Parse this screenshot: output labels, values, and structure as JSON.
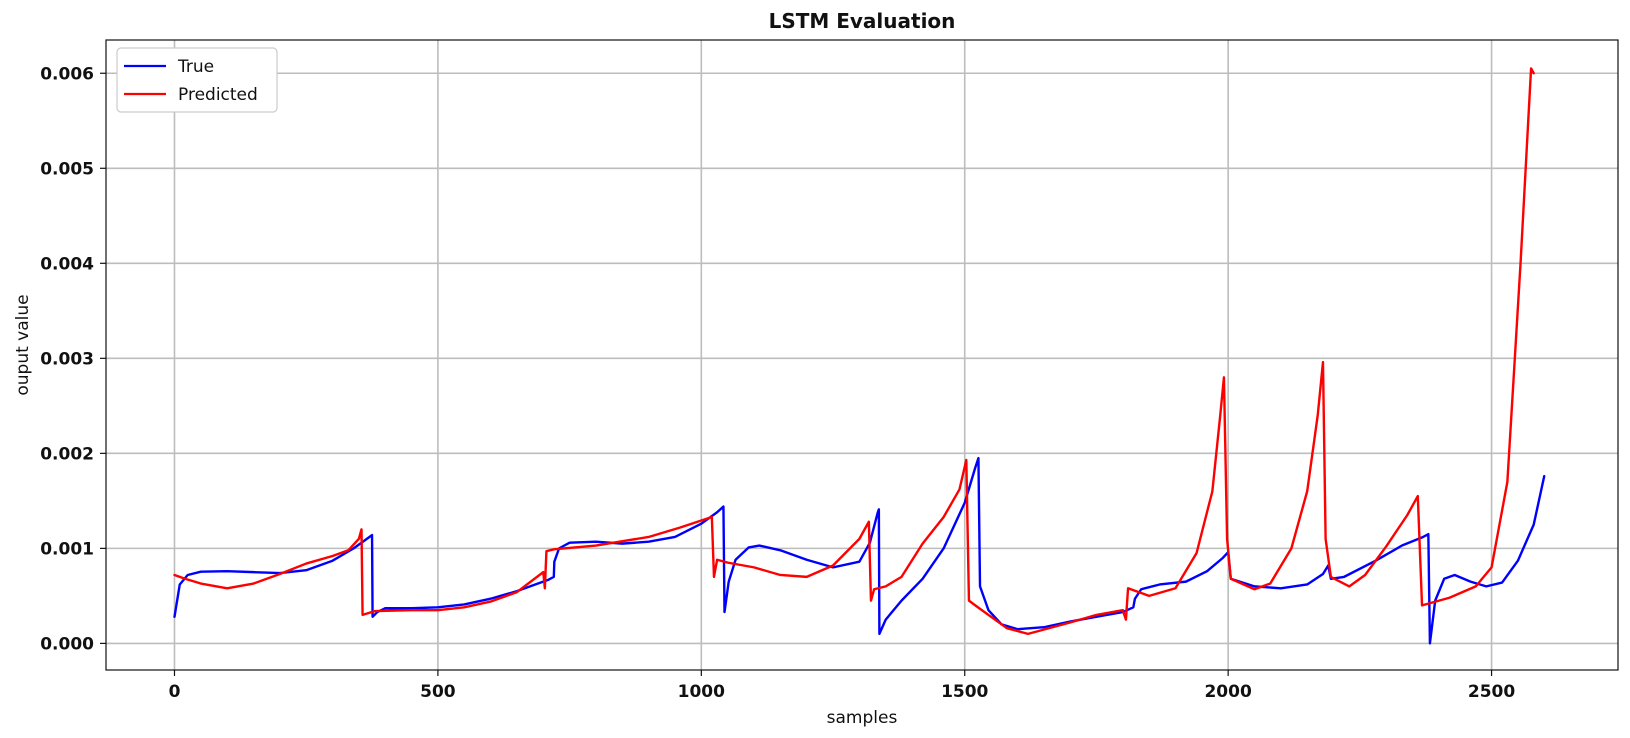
{
  "chart_data": {
    "type": "line",
    "title": "LSTM Evaluation",
    "xlabel": "samples",
    "ylabel": "ouput value",
    "xlim": [
      -130,
      2740
    ],
    "ylim": [
      -0.00028,
      0.00635
    ],
    "xticks": [
      0,
      500,
      1000,
      1500,
      2000,
      2500
    ],
    "xtick_labels": [
      "0",
      "500",
      "1000",
      "1500",
      "2000",
      "2500"
    ],
    "yticks": [
      0,
      0.001,
      0.002,
      0.003,
      0.004,
      0.005,
      0.006
    ],
    "ytick_labels": [
      "0.000",
      "0.001",
      "0.002",
      "0.003",
      "0.004",
      "0.005",
      "0.006"
    ],
    "grid": true,
    "legend_position": "top-left",
    "series": [
      {
        "name": "True",
        "color": "#0000ff",
        "points": [
          [
            0,
            0.00028
          ],
          [
            10,
            0.00062
          ],
          [
            25,
            0.00072
          ],
          [
            50,
            0.000755
          ],
          [
            100,
            0.00076
          ],
          [
            150,
            0.00075
          ],
          [
            200,
            0.00074
          ],
          [
            250,
            0.00077
          ],
          [
            300,
            0.00087
          ],
          [
            340,
            0.001
          ],
          [
            370,
            0.00112
          ],
          [
            375,
            0.00114
          ],
          [
            376,
            0.00028
          ],
          [
            385,
            0.00033
          ],
          [
            400,
            0.00037
          ],
          [
            450,
            0.00037
          ],
          [
            500,
            0.00038
          ],
          [
            550,
            0.00041
          ],
          [
            600,
            0.00047
          ],
          [
            650,
            0.00055
          ],
          [
            690,
            0.00063
          ],
          [
            710,
            0.00067
          ],
          [
            720,
            0.0007
          ],
          [
            721,
            0.00086
          ],
          [
            730,
            0.001
          ],
          [
            750,
            0.00106
          ],
          [
            800,
            0.00107
          ],
          [
            850,
            0.00105
          ],
          [
            900,
            0.00107
          ],
          [
            950,
            0.00112
          ],
          [
            1000,
            0.00126
          ],
          [
            1030,
            0.00138
          ],
          [
            1042,
            0.00144
          ],
          [
            1044,
            0.00033
          ],
          [
            1052,
            0.00065
          ],
          [
            1065,
            0.00088
          ],
          [
            1090,
            0.00101
          ],
          [
            1110,
            0.00103
          ],
          [
            1150,
            0.00098
          ],
          [
            1200,
            0.00088
          ],
          [
            1250,
            0.0008
          ],
          [
            1300,
            0.00086
          ],
          [
            1320,
            0.00106
          ],
          [
            1335,
            0.00138
          ],
          [
            1337,
            0.00141
          ],
          [
            1338,
            0.0001
          ],
          [
            1350,
            0.00025
          ],
          [
            1380,
            0.00045
          ],
          [
            1420,
            0.00068
          ],
          [
            1460,
            0.001
          ],
          [
            1500,
            0.00148
          ],
          [
            1520,
            0.00185
          ],
          [
            1526,
            0.00195
          ],
          [
            1529,
            0.0006
          ],
          [
            1545,
            0.00035
          ],
          [
            1570,
            0.0002
          ],
          [
            1600,
            0.00015
          ],
          [
            1650,
            0.00017
          ],
          [
            1700,
            0.00023
          ],
          [
            1760,
            0.00029
          ],
          [
            1800,
            0.00033
          ],
          [
            1820,
            0.00038
          ],
          [
            1823,
            0.00047
          ],
          [
            1835,
            0.00057
          ],
          [
            1870,
            0.00062
          ],
          [
            1920,
            0.00065
          ],
          [
            1960,
            0.00076
          ],
          [
            1990,
            0.0009
          ],
          [
            2000,
            0.00096
          ],
          [
            2005,
            0.00068
          ],
          [
            2050,
            0.0006
          ],
          [
            2100,
            0.00058
          ],
          [
            2150,
            0.00062
          ],
          [
            2180,
            0.00073
          ],
          [
            2190,
            0.00082
          ],
          [
            2195,
            0.00068
          ],
          [
            2220,
            0.0007
          ],
          [
            2280,
            0.00087
          ],
          [
            2330,
            0.00103
          ],
          [
            2370,
            0.00112
          ],
          [
            2380,
            0.00115
          ],
          [
            2383,
            0.0
          ],
          [
            2393,
            0.00045
          ],
          [
            2410,
            0.00068
          ],
          [
            2430,
            0.00072
          ],
          [
            2460,
            0.00065
          ],
          [
            2490,
            0.0006
          ],
          [
            2520,
            0.00064
          ],
          [
            2550,
            0.00087
          ],
          [
            2580,
            0.00125
          ],
          [
            2600,
            0.00176
          ]
        ]
      },
      {
        "name": "Predicted",
        "color": "#ff0000",
        "points": [
          [
            0,
            0.00072
          ],
          [
            20,
            0.00068
          ],
          [
            50,
            0.00063
          ],
          [
            100,
            0.00058
          ],
          [
            150,
            0.00063
          ],
          [
            200,
            0.00073
          ],
          [
            250,
            0.00084
          ],
          [
            300,
            0.00092
          ],
          [
            330,
            0.00098
          ],
          [
            350,
            0.0011
          ],
          [
            355,
            0.0012
          ],
          [
            357,
            0.0003
          ],
          [
            380,
            0.00034
          ],
          [
            450,
            0.00035
          ],
          [
            500,
            0.00035
          ],
          [
            550,
            0.00038
          ],
          [
            600,
            0.00044
          ],
          [
            650,
            0.00054
          ],
          [
            700,
            0.00075
          ],
          [
            703,
            0.00058
          ],
          [
            706,
            0.00097
          ],
          [
            720,
            0.00099
          ],
          [
            800,
            0.00103
          ],
          [
            900,
            0.00112
          ],
          [
            960,
            0.00122
          ],
          [
            1020,
            0.00133
          ],
          [
            1024,
            0.0007
          ],
          [
            1030,
            0.00088
          ],
          [
            1050,
            0.00085
          ],
          [
            1100,
            0.0008
          ],
          [
            1150,
            0.00072
          ],
          [
            1200,
            0.0007
          ],
          [
            1250,
            0.00082
          ],
          [
            1300,
            0.0011
          ],
          [
            1318,
            0.00128
          ],
          [
            1322,
            0.00045
          ],
          [
            1328,
            0.00057
          ],
          [
            1350,
            0.0006
          ],
          [
            1380,
            0.0007
          ],
          [
            1420,
            0.00105
          ],
          [
            1460,
            0.00133
          ],
          [
            1490,
            0.00162
          ],
          [
            1503,
            0.00193
          ],
          [
            1508,
            0.00045
          ],
          [
            1520,
            0.0004
          ],
          [
            1550,
            0.00028
          ],
          [
            1580,
            0.00016
          ],
          [
            1620,
            0.0001
          ],
          [
            1700,
            0.00022
          ],
          [
            1750,
            0.0003
          ],
          [
            1800,
            0.00035
          ],
          [
            1806,
            0.00025
          ],
          [
            1810,
            0.00058
          ],
          [
            1825,
            0.00055
          ],
          [
            1850,
            0.0005
          ],
          [
            1900,
            0.00058
          ],
          [
            1940,
            0.00095
          ],
          [
            1970,
            0.0016
          ],
          [
            1985,
            0.0024
          ],
          [
            1992,
            0.0028
          ],
          [
            1998,
            0.0011
          ],
          [
            2005,
            0.00068
          ],
          [
            2050,
            0.00057
          ],
          [
            2080,
            0.00063
          ],
          [
            2120,
            0.001
          ],
          [
            2150,
            0.0016
          ],
          [
            2170,
            0.0024
          ],
          [
            2180,
            0.00296
          ],
          [
            2185,
            0.0011
          ],
          [
            2195,
            0.0007
          ],
          [
            2230,
            0.0006
          ],
          [
            2260,
            0.00072
          ],
          [
            2300,
            0.00102
          ],
          [
            2340,
            0.00135
          ],
          [
            2360,
            0.00155
          ],
          [
            2368,
            0.0004
          ],
          [
            2420,
            0.00048
          ],
          [
            2470,
            0.0006
          ],
          [
            2500,
            0.0008
          ],
          [
            2530,
            0.0017
          ],
          [
            2555,
            0.004
          ],
          [
            2575,
            0.00605
          ],
          [
            2580,
            0.006
          ]
        ]
      }
    ]
  }
}
